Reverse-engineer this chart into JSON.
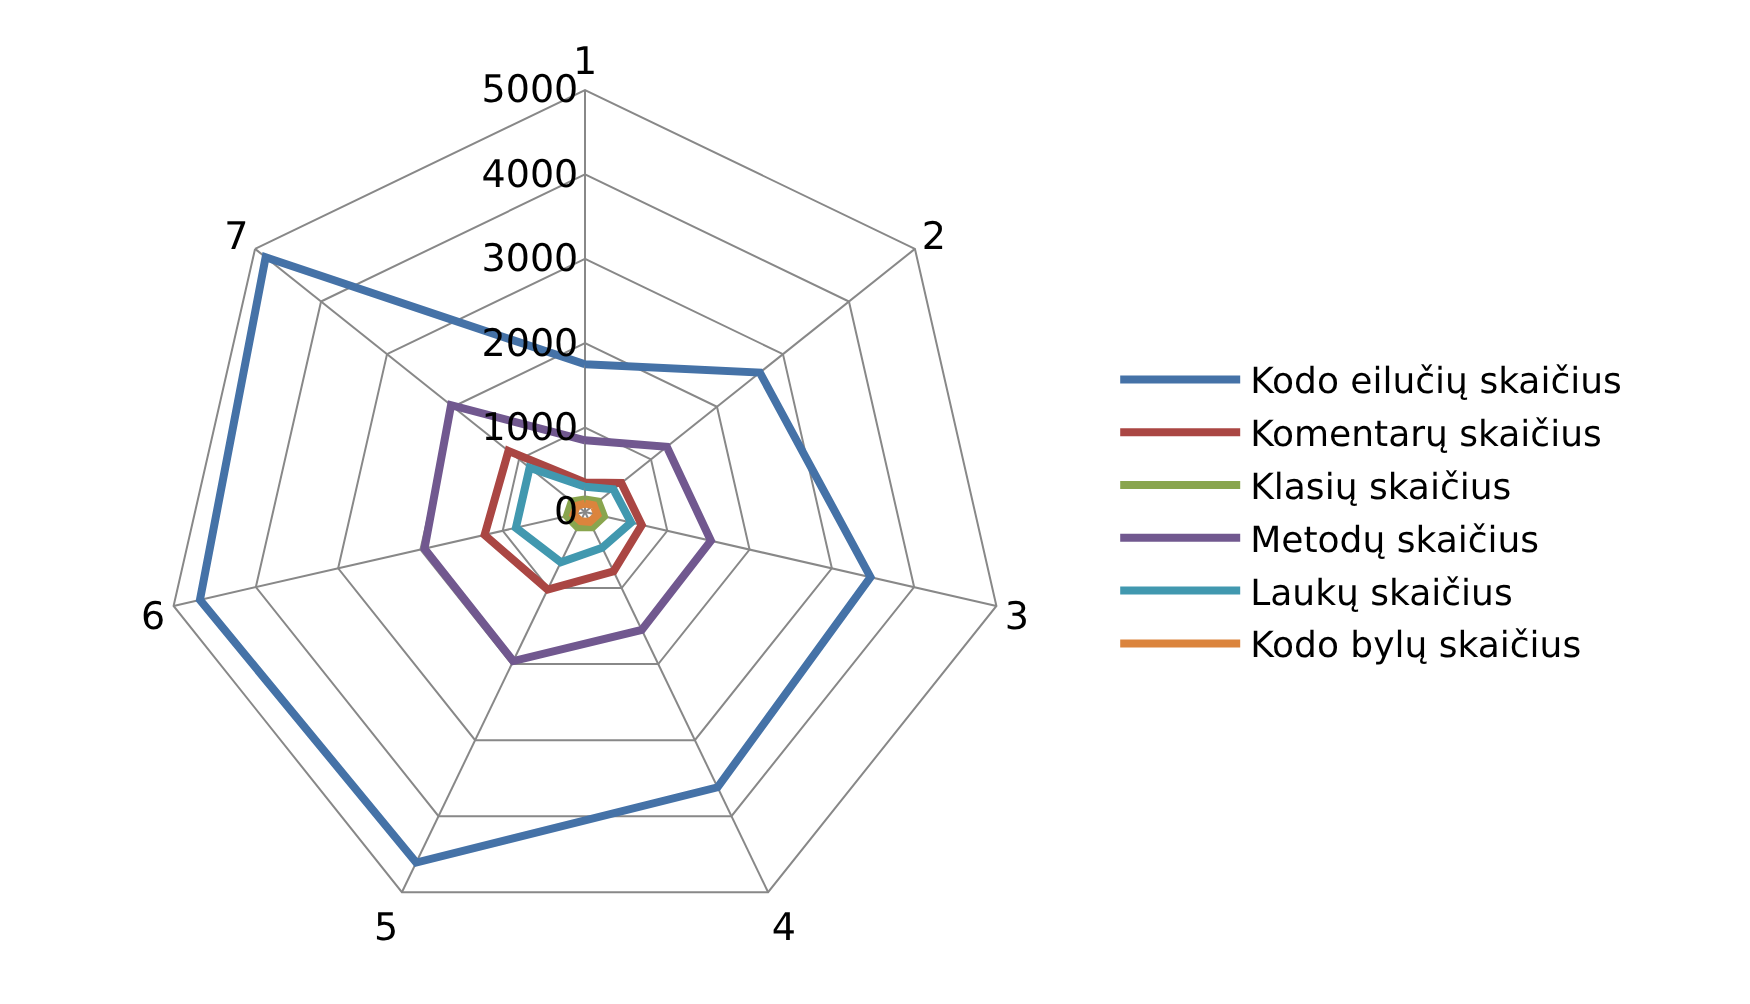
{
  "chart_data": {
    "type": "radar",
    "categories": [
      "1",
      "2",
      "3",
      "4",
      "5",
      "6",
      "7"
    ],
    "ylim": [
      0,
      5000
    ],
    "yticks": [
      0,
      1000,
      2000,
      3000,
      4000,
      5000
    ],
    "grid": true,
    "legend": "right",
    "marker": "none",
    "line_style": "solid",
    "series": [
      {
        "name": "Kodo eilučių skaičius",
        "color": "#4572a7",
        "values": [
          1750,
          2650,
          3470,
          3620,
          4610,
          4680,
          4840
        ]
      },
      {
        "name": "Komentarų skaičius",
        "color": "#aa4643",
        "values": [
          350,
          550,
          690,
          780,
          1020,
          1220,
          1160
        ]
      },
      {
        "name": "Klasių skaičius",
        "color": "#89a54e",
        "values": [
          150,
          200,
          230,
          200,
          200,
          220,
          200
        ]
      },
      {
        "name": "Metodų skaičius",
        "color": "#71588f",
        "values": [
          850,
          1240,
          1530,
          1550,
          1960,
          1950,
          2030
        ]
      },
      {
        "name": "Laukų skaičius",
        "color": "#4198af",
        "values": [
          300,
          430,
          560,
          470,
          660,
          840,
          840
        ]
      },
      {
        "name": "Kodo bylų skaičius",
        "color": "#db843d",
        "values": [
          100,
          130,
          150,
          130,
          120,
          140,
          120
        ]
      }
    ]
  }
}
